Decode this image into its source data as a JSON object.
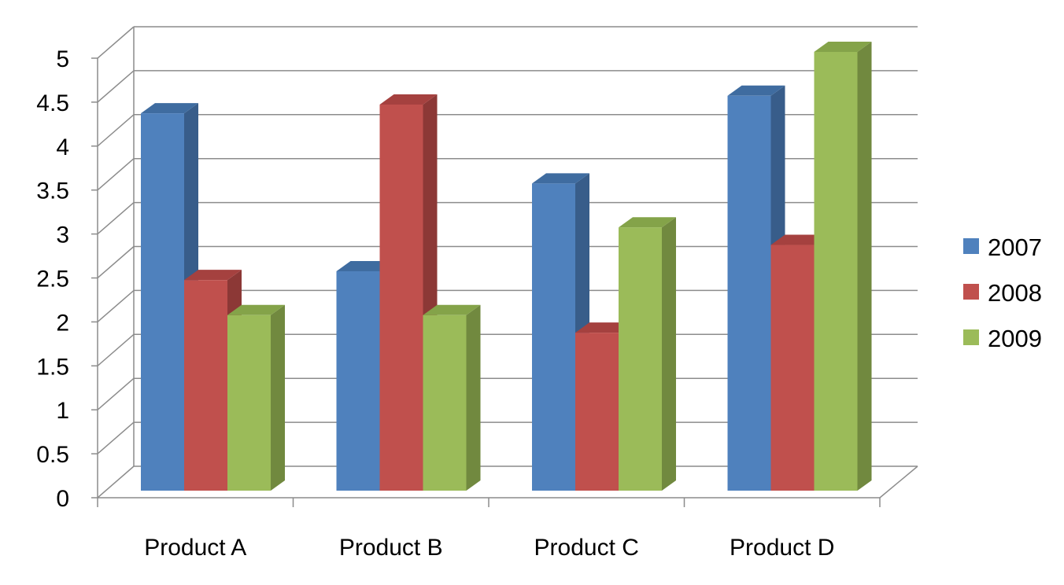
{
  "chart_data": {
    "type": "bar",
    "title": "",
    "xlabel": "",
    "ylabel": "",
    "categories": [
      "Product A",
      "Product B",
      "Product C",
      "Product D"
    ],
    "series": [
      {
        "name": "2007",
        "values": [
          4.3,
          2.5,
          3.5,
          4.5
        ]
      },
      {
        "name": "2008",
        "values": [
          2.4,
          4.4,
          1.8,
          2.8
        ]
      },
      {
        "name": "2009",
        "values": [
          2.0,
          2.0,
          3.0,
          5.0
        ]
      }
    ],
    "ylim": [
      0,
      5
    ],
    "yticks": [
      "0",
      "0.5",
      "1",
      "1.5",
      "2",
      "2.5",
      "3",
      "3.5",
      "4",
      "4.5",
      "5"
    ],
    "grid": true,
    "legend_position": "right",
    "style": "3d-clustered-column",
    "colors": {
      "2007": {
        "front": "#4F81BD",
        "side": "#385D8A",
        "top": "#3F6CA0"
      },
      "2008": {
        "front": "#C0504D",
        "side": "#8C3836",
        "top": "#A5413F"
      },
      "2009": {
        "front": "#9BBB59",
        "side": "#71893F",
        "top": "#84A349"
      },
      "grid": "#8C8C8C",
      "axis": "#8C8C8C"
    }
  }
}
